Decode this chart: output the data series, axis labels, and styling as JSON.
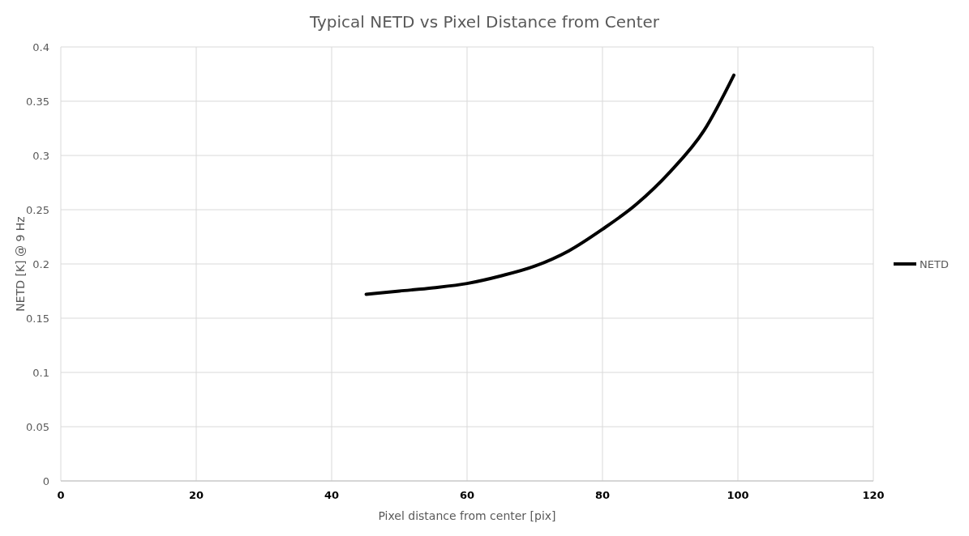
{
  "chart_data": {
    "type": "line",
    "title": "Typical NETD vs Pixel Distance from Center",
    "xlabel": "Pixel distance from center [pix]",
    "ylabel": "NETD [K] @ 9 Hz",
    "x": [
      45.1,
      50,
      55,
      60,
      65,
      70,
      75,
      80,
      85,
      90,
      95,
      99.4
    ],
    "series": [
      {
        "name": "NETD",
        "color": "#000000",
        "values": [
          0.172,
          0.175,
          0.178,
          0.182,
          0.189,
          0.198,
          0.212,
          0.232,
          0.255,
          0.285,
          0.323,
          0.374
        ]
      }
    ],
    "xlim": [
      0,
      120
    ],
    "xticks": [
      0,
      20,
      40,
      60,
      80,
      100,
      120
    ],
    "ylim": [
      0,
      0.4
    ],
    "yticks": [
      0,
      0.05,
      0.1,
      0.15,
      0.2,
      0.25,
      0.3,
      0.35,
      0.4
    ],
    "grid": true,
    "legend": "right",
    "marker": "none",
    "line_style": "solid"
  }
}
